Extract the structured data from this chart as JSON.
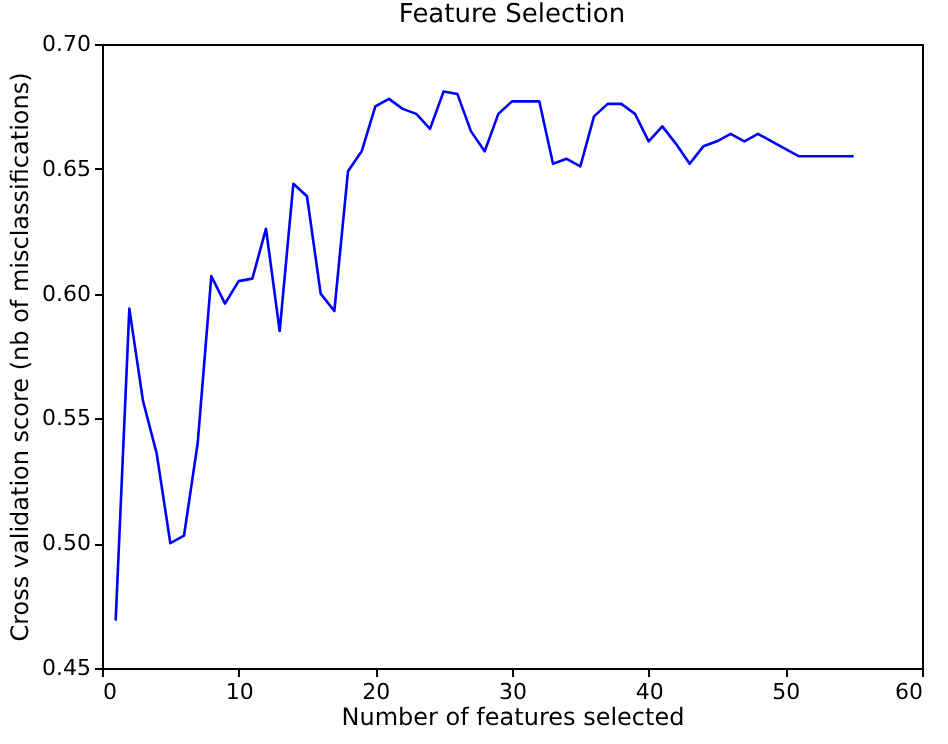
{
  "chart_data": {
    "type": "line",
    "title": "Feature Selection",
    "xlabel": "Number of features selected",
    "ylabel": "Cross validation score (nb of misclassifications)",
    "x": [
      1,
      2,
      3,
      4,
      5,
      6,
      7,
      8,
      9,
      10,
      11,
      12,
      13,
      14,
      15,
      16,
      17,
      18,
      19,
      20,
      21,
      22,
      23,
      24,
      25,
      26,
      27,
      28,
      29,
      30,
      31,
      32,
      33,
      34,
      35,
      36,
      37,
      38,
      39,
      40,
      41,
      42,
      43,
      44,
      45,
      46,
      47,
      48,
      49,
      50,
      51,
      52,
      53,
      54,
      55
    ],
    "series": [
      {
        "color": "#0000ff",
        "values": [
          0.469,
          0.594,
          0.557,
          0.536,
          0.5,
          0.503,
          0.54,
          0.607,
          0.596,
          0.605,
          0.606,
          0.626,
          0.585,
          0.644,
          0.639,
          0.6,
          0.593,
          0.649,
          0.657,
          0.675,
          0.678,
          0.674,
          0.672,
          0.666,
          0.681,
          0.68,
          0.665,
          0.657,
          0.672,
          0.677,
          0.677,
          0.677,
          0.652,
          0.654,
          0.651,
          0.671,
          0.676,
          0.676,
          0.672,
          0.661,
          0.667,
          0.66,
          0.652,
          0.659,
          0.661,
          0.664,
          0.661,
          0.664,
          0.661,
          0.658,
          0.655,
          0.655,
          0.655,
          0.655,
          0.655
        ]
      }
    ],
    "xlim": [
      0,
      60
    ],
    "xticks": [
      0,
      10,
      20,
      30,
      40,
      50,
      60
    ],
    "ylim": [
      0.45,
      0.7
    ],
    "yticks": [
      0.45,
      {
        "value": 0.5,
        "label": "0.50"
      },
      0.55,
      {
        "value": 0.6,
        "label": "0.60"
      },
      0.65,
      {
        "value": 0.7,
        "label": "0.70"
      }
    ],
    "grid": false,
    "line_style": "solid",
    "marker": "none"
  }
}
